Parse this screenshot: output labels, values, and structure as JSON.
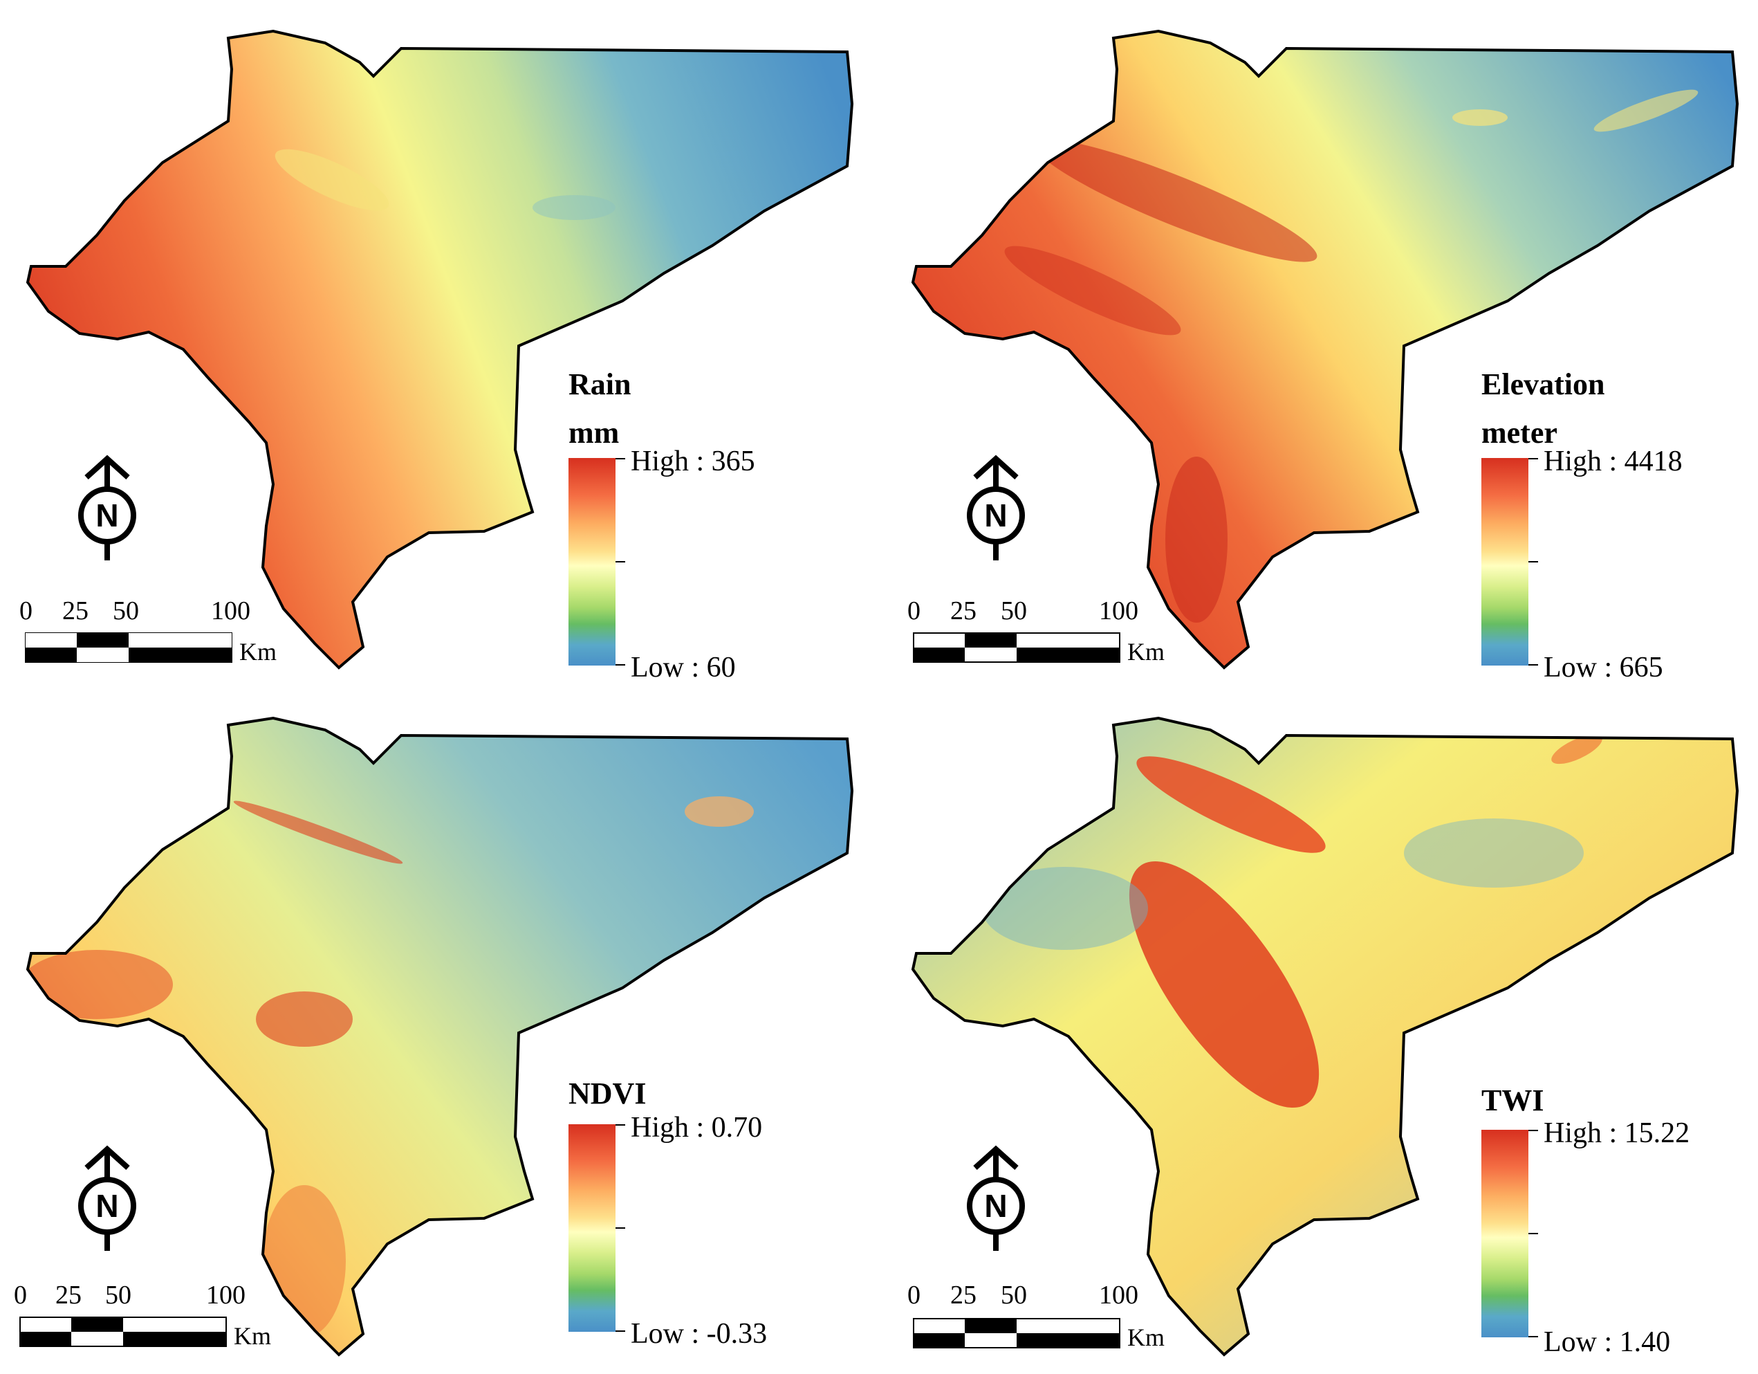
{
  "panels": [
    {
      "id": "rain",
      "title": "Rain",
      "unit": "mm",
      "high_label": "High : 365",
      "low_label": "Low : 60"
    },
    {
      "id": "elevation",
      "title": "Elevation",
      "unit": "meter",
      "high_label": "High : 4418",
      "low_label": "Low : 665"
    },
    {
      "id": "ndvi",
      "title": "NDVI",
      "unit": "",
      "high_label": "High : 0.70",
      "low_label": "Low : -0.33"
    },
    {
      "id": "twi",
      "title": "TWI",
      "unit": "",
      "high_label": "High : 15.22",
      "low_label": "Low : 1.40"
    }
  ],
  "scale_bar": {
    "ticks": [
      "0",
      "25",
      "50",
      "100"
    ],
    "unit": "Km"
  },
  "north_arrow": {
    "letter": "N",
    "icon": "north-arrow-icon"
  },
  "colors": {
    "high": "#d7301f",
    "mid": "#ffffbf",
    "low": "#4a90c8",
    "outline": "#000000"
  }
}
